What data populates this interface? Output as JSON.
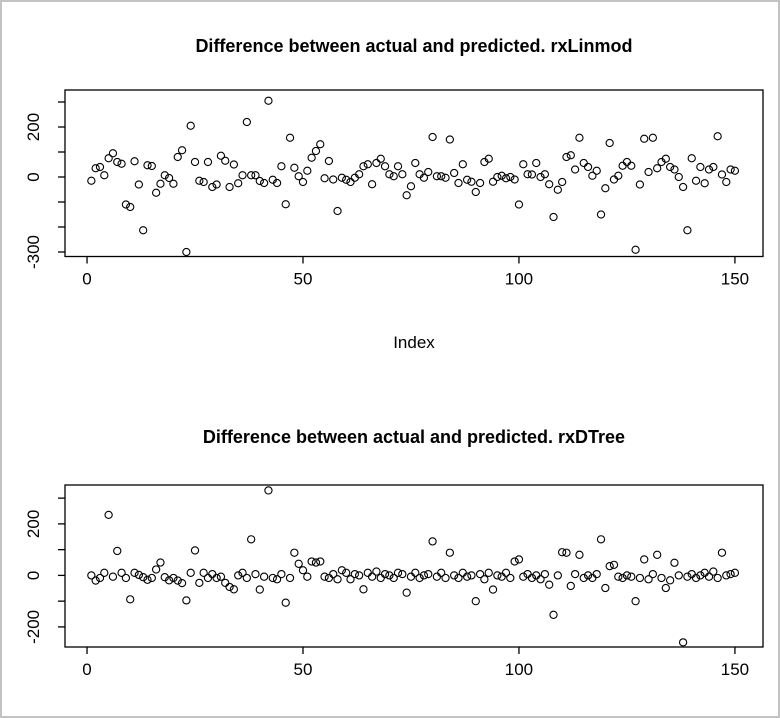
{
  "figure": {
    "background": "#ffffff",
    "border_color": "#c3c3c3",
    "point_color": "#000000",
    "axis_color": "#000000"
  },
  "chart_data": [
    {
      "type": "scatter",
      "title": "Difference between actual and predicted. rxLinmod",
      "xlabel": "Index",
      "ylabel": "",
      "x_ticks": [
        0,
        50,
        100,
        150
      ],
      "y_ticks": [
        300,
        200,
        100,
        0,
        -100,
        -200,
        -300
      ],
      "y_tick_labels": [
        200,
        0,
        -300
      ],
      "xlim": [
        -5.1,
        156.5
      ],
      "ylim": [
        -318,
        348
      ],
      "legend": "none",
      "grid": false,
      "x": "index 1..150",
      "values": [
        -15,
        35,
        40,
        7,
        75,
        95,
        60,
        53,
        -110,
        -120,
        63,
        -30,
        -213,
        47,
        44,
        -63,
        -27,
        7,
        -4,
        -27,
        80,
        107,
        -300,
        205,
        60,
        -15,
        -20,
        60,
        -40,
        -30,
        85,
        65,
        -40,
        50,
        -25,
        7,
        220,
        7,
        7,
        -16,
        -24,
        305,
        -11,
        -24,
        43,
        -109,
        157,
        37,
        3,
        -20,
        25,
        77,
        104,
        131,
        -5,
        64,
        -10,
        -136,
        -3,
        -11,
        -20,
        -3,
        11,
        43,
        51,
        -29,
        56,
        73,
        43,
        11,
        3,
        43,
        11,
        -73,
        -37,
        56,
        11,
        -3,
        20,
        160,
        3,
        3,
        -3,
        150,
        16,
        -24,
        51,
        -11,
        -19,
        -60,
        -24,
        60,
        73,
        -19,
        0,
        5,
        -5,
        0,
        -10,
        -110,
        51,
        11,
        10,
        56,
        0,
        11,
        -29,
        -160,
        -51,
        -20,
        80,
        87,
        30,
        157,
        56,
        40,
        5,
        25,
        -150,
        -45,
        136,
        -10,
        5,
        45,
        60,
        45,
        -291,
        -30,
        153,
        20,
        157,
        35,
        60,
        73,
        40,
        30,
        0,
        -40,
        -213,
        75,
        -15,
        40,
        -25,
        30,
        40,
        163,
        10,
        -20,
        30,
        25
      ]
    },
    {
      "type": "scatter",
      "title": "Difference between actual and predicted. rxDTree",
      "xlabel": "",
      "ylabel": "",
      "x_ticks": [
        0,
        50,
        100,
        150
      ],
      "y_ticks": [
        300,
        200,
        100,
        0,
        -100,
        -200
      ],
      "y_tick_labels": [
        200,
        0,
        -200
      ],
      "xlim": [
        -5.1,
        156.5
      ],
      "ylim": [
        -278,
        351
      ],
      "legend": "none",
      "grid": false,
      "x": "index 1..150",
      "values": [
        0,
        -20,
        -10,
        10,
        235,
        -5,
        95,
        10,
        -10,
        -93,
        10,
        2,
        -7,
        -17,
        -10,
        23,
        50,
        -7,
        -19,
        -10,
        -20,
        -30,
        -97,
        10,
        97,
        -29,
        10,
        -10,
        5,
        -10,
        -5,
        -29,
        -45,
        -54,
        0,
        10,
        -10,
        140,
        5,
        -55,
        -5,
        330,
        -10,
        -15,
        5,
        -106,
        -10,
        88,
        45,
        20,
        -5,
        54,
        50,
        54,
        -5,
        -10,
        5,
        -15,
        20,
        10,
        -15,
        5,
        0,
        -54,
        10,
        -5,
        15,
        -10,
        5,
        0,
        -10,
        10,
        5,
        -67,
        -5,
        10,
        -10,
        0,
        5,
        132,
        -5,
        10,
        -10,
        88,
        0,
        -10,
        10,
        -5,
        0,
        -100,
        5,
        -15,
        10,
        -55,
        0,
        -5,
        10,
        -10,
        54,
        62,
        -5,
        5,
        -10,
        0,
        -15,
        5,
        -36,
        -153,
        0,
        90,
        88,
        -41,
        5,
        80,
        -10,
        0,
        -10,
        5,
        140,
        -49,
        36,
        41,
        -5,
        -10,
        0,
        -5,
        -100,
        -10,
        62,
        -15,
        5,
        80,
        -10,
        -49,
        -19,
        49,
        0,
        -260,
        -5,
        5,
        -10,
        0,
        10,
        -5,
        15,
        -10,
        88,
        0,
        5,
        10
      ]
    }
  ]
}
